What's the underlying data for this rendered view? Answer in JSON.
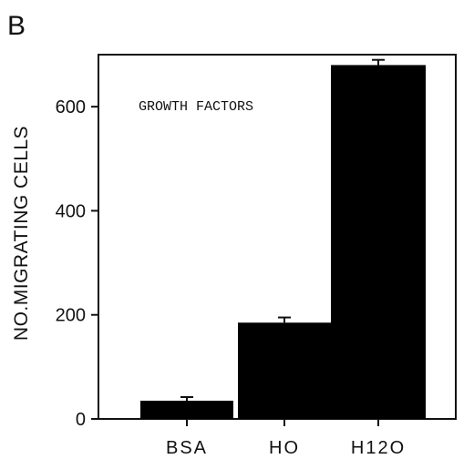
{
  "panel_label": "B",
  "chart_data": {
    "type": "bar",
    "categories": [
      "BSA",
      "HO",
      "H12O"
    ],
    "values": [
      35,
      185,
      680
    ],
    "errors": [
      7,
      10,
      10
    ],
    "annotation": "GROWTH FACTORS",
    "title": "",
    "xlabel": "",
    "ylabel": "NO.MIGRATING CELLS",
    "ylim": [
      0,
      700
    ],
    "yticks": [
      0,
      200,
      400,
      600
    ],
    "grid": false,
    "bar_color": "#000000"
  }
}
